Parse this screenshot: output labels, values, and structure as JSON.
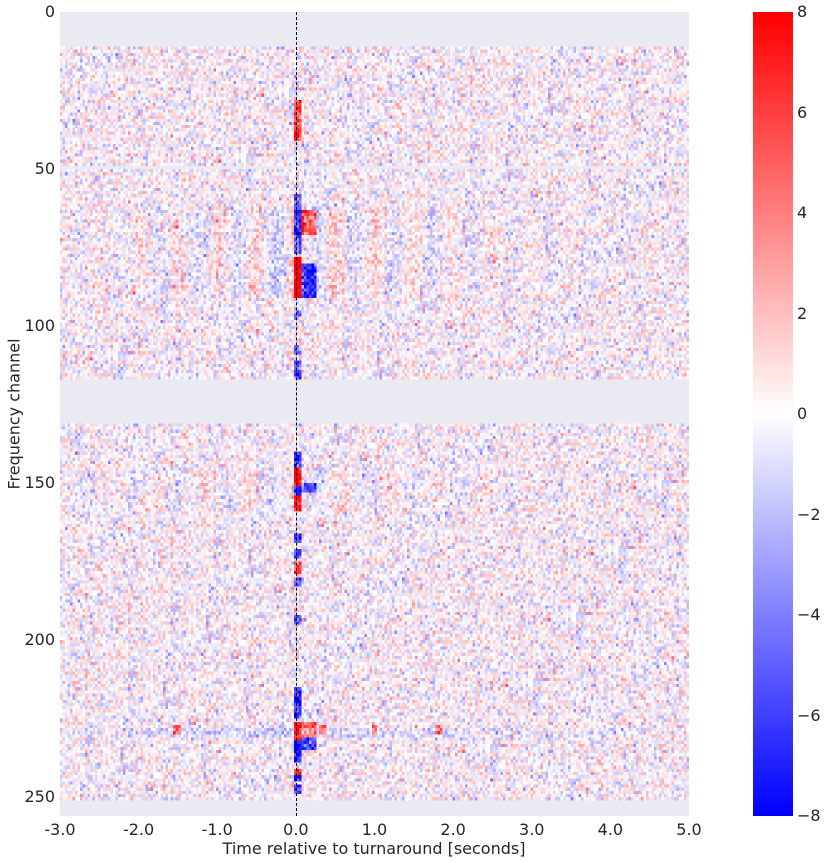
{
  "chart_data": {
    "type": "heatmap",
    "title": "",
    "xlabel": "Time relative to turnaround [seconds]",
    "ylabel": "Frequency channel",
    "xlim": [
      -3.0,
      5.0
    ],
    "ylim": [
      256,
      0
    ],
    "x_ticks": [
      -3.0,
      -2.0,
      -1.0,
      0.0,
      1.0,
      2.0,
      3.0,
      4.0,
      5.0
    ],
    "x_tick_labels": [
      "-3.0",
      "-2.0",
      "-1.0",
      "0.0",
      "1.0",
      "2.0",
      "3.0",
      "4.0",
      "5.0"
    ],
    "y_ticks": [
      0,
      50,
      100,
      150,
      200,
      250
    ],
    "y_tick_labels": [
      "0",
      "50",
      "100",
      "150",
      "200",
      "250"
    ],
    "n_channels": 256,
    "n_time_bins": 250,
    "colormap": "bwr",
    "clim": [
      -8,
      8
    ],
    "colorbar": {
      "ticks": [
        8,
        6,
        4,
        2,
        0,
        -2,
        -4,
        -6,
        -8
      ],
      "tick_labels": [
        "8",
        "6",
        "4",
        "2",
        "0",
        "−2",
        "−4",
        "−6",
        "−8"
      ],
      "position": "right"
    },
    "masked_channels": [
      [
        0,
        10
      ],
      [
        49,
        49
      ],
      [
        117,
        130
      ],
      [
        251,
        255
      ]
    ],
    "masked_color": "#eaeaf2",
    "vertical_marker": {
      "x": 0.0,
      "style": "dashed",
      "color": "#000000"
    },
    "noise_sigma": 1.3,
    "features": [
      {
        "note": "pulse column at t=0",
        "t": [
          0.0,
          0.05
        ],
        "ch_ranges": [
          {
            "ch": [
              28,
              40
            ],
            "value": 6
          },
          {
            "ch": [
              58,
              62
            ],
            "value": -5
          },
          {
            "ch": [
              63,
              70
            ],
            "value": -8
          },
          {
            "ch": [
              71,
              76
            ],
            "value": -6
          },
          {
            "ch": [
              78,
              90
            ],
            "value": 8
          },
          {
            "ch": [
              95,
              97
            ],
            "value": -4
          },
          {
            "ch": [
              106,
              108
            ],
            "value": -4
          },
          {
            "ch": [
              111,
              116
            ],
            "value": -5
          },
          {
            "ch": [
              140,
              144
            ],
            "value": -5
          },
          {
            "ch": [
              145,
              150
            ],
            "value": 7
          },
          {
            "ch": [
              151,
              153
            ],
            "value": -8
          },
          {
            "ch": [
              154,
              158
            ],
            "value": 7
          },
          {
            "ch": [
              166,
              168
            ],
            "value": -6
          },
          {
            "ch": [
              171,
              173
            ],
            "value": -5
          },
          {
            "ch": [
              175,
              178
            ],
            "value": 6
          },
          {
            "ch": [
              180,
              182
            ],
            "value": -5
          },
          {
            "ch": [
              192,
              194
            ],
            "value": -5
          },
          {
            "ch": [
              215,
              220
            ],
            "value": -7
          },
          {
            "ch": [
              221,
              224
            ],
            "value": -6
          },
          {
            "ch": [
              226,
              231
            ],
            "value": 8
          },
          {
            "ch": [
              232,
              238
            ],
            "value": -8
          },
          {
            "ch": [
              241,
              242
            ],
            "value": 6
          },
          {
            "ch": [
              243,
              244
            ],
            "value": -7
          },
          {
            "ch": [
              246,
              248
            ],
            "value": -6
          }
        ]
      },
      {
        "note": "echo column at t=0.2",
        "t": [
          0.1,
          0.25
        ],
        "ch_ranges": [
          {
            "ch": [
              63,
              70
            ],
            "value": 6
          },
          {
            "ch": [
              80,
              90
            ],
            "value": -6
          },
          {
            "ch": [
              150,
              152
            ],
            "value": -6
          },
          {
            "ch": [
              226,
              230
            ],
            "value": 5
          },
          {
            "ch": [
              231,
              234
            ],
            "value": -6
          }
        ]
      },
      {
        "note": "horizontal striping band",
        "ch_ranges": [
          {
            "ch": [
              62,
              90
            ],
            "value": 1.8,
            "period_s": 0.5
          },
          {
            "ch": [
              145,
              158
            ],
            "value": 1.4,
            "period_s": 0.6
          },
          {
            "ch": [
              228,
              230
            ],
            "value": -2.0,
            "period_s": 0.0
          }
        ]
      },
      {
        "note": "spots on channel 228",
        "t_points": [
          -1.5,
          0.35,
          1.0,
          1.8
        ],
        "ch": [
          227,
          229
        ],
        "value": 5
      }
    ]
  }
}
